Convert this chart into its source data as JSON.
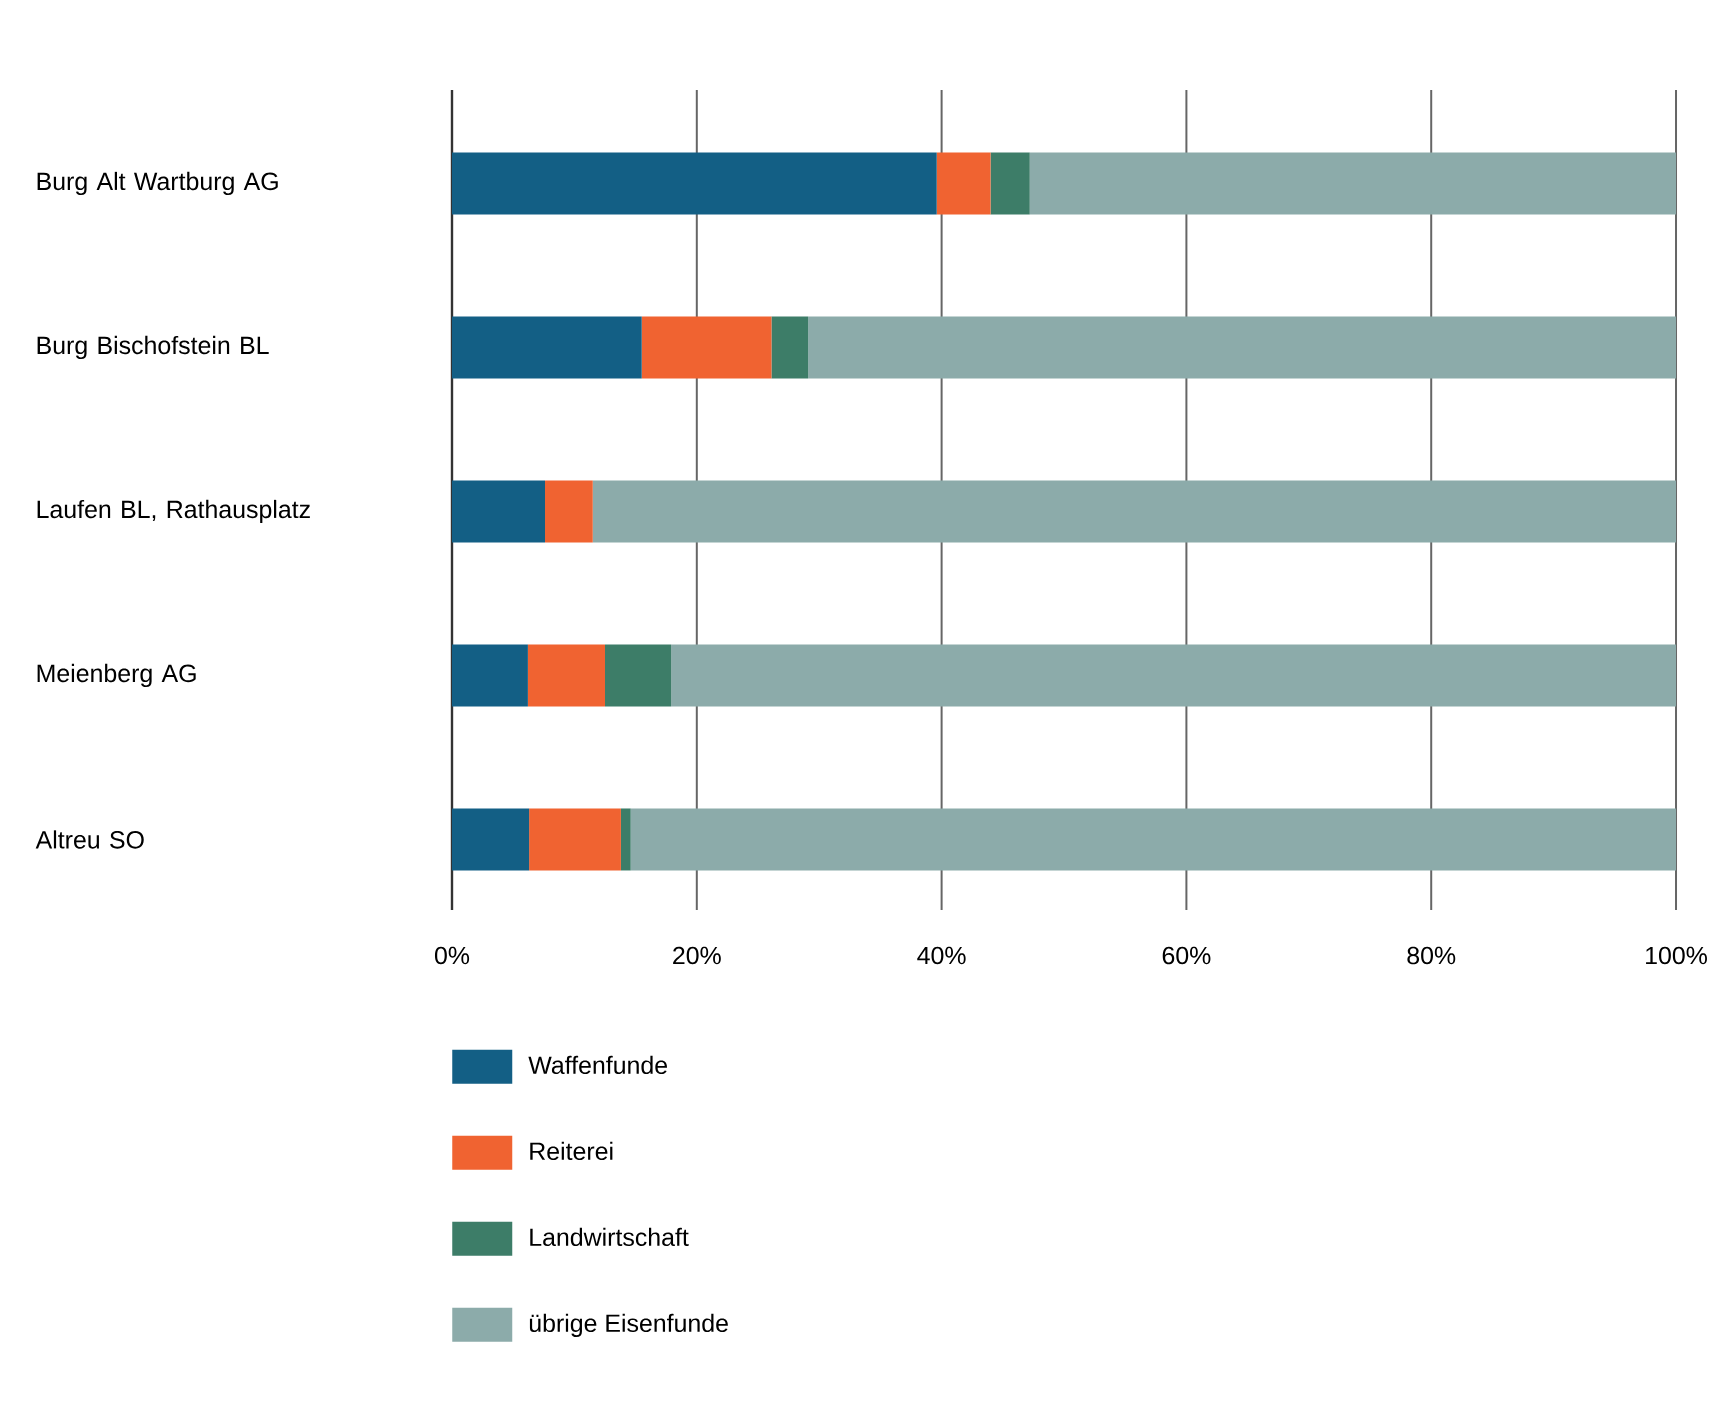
{
  "chart_data": {
    "type": "bar",
    "orientation": "horizontal",
    "stacked": true,
    "categories": [
      "Burg Alt Wartburg AG",
      "Burg Bischofstein BL",
      "Laufen BL, Rathausplatz",
      "Meienberg AG",
      "Altreu SO"
    ],
    "series": [
      {
        "name": "Waffenfunde",
        "color": "#135f85",
        "values": [
          39.6,
          15.5,
          7.6,
          6.2,
          6.3
        ]
      },
      {
        "name": "Reiterei",
        "color": "#f06331",
        "values": [
          4.4,
          10.6,
          3.9,
          6.3,
          7.5
        ]
      },
      {
        "name": "Landwirtschaft",
        "color": "#3d7d68",
        "values": [
          3.2,
          3.0,
          0,
          5.4,
          0.8
        ]
      },
      {
        "name": "übrige Eisenfunde",
        "color": "#8cabaa",
        "values": [
          52.8,
          70.9,
          88.5,
          82.1,
          85.4
        ]
      }
    ],
    "xlim": [
      0,
      100
    ],
    "xticks": [
      {
        "value": 0,
        "label": "0%"
      },
      {
        "value": 20,
        "label": "20%"
      },
      {
        "value": 40,
        "label": "40%"
      },
      {
        "value": 60,
        "label": "60%"
      },
      {
        "value": 80,
        "label": "80%"
      },
      {
        "value": 100,
        "label": "100%"
      }
    ],
    "grid": "x",
    "legend": "bottom"
  }
}
